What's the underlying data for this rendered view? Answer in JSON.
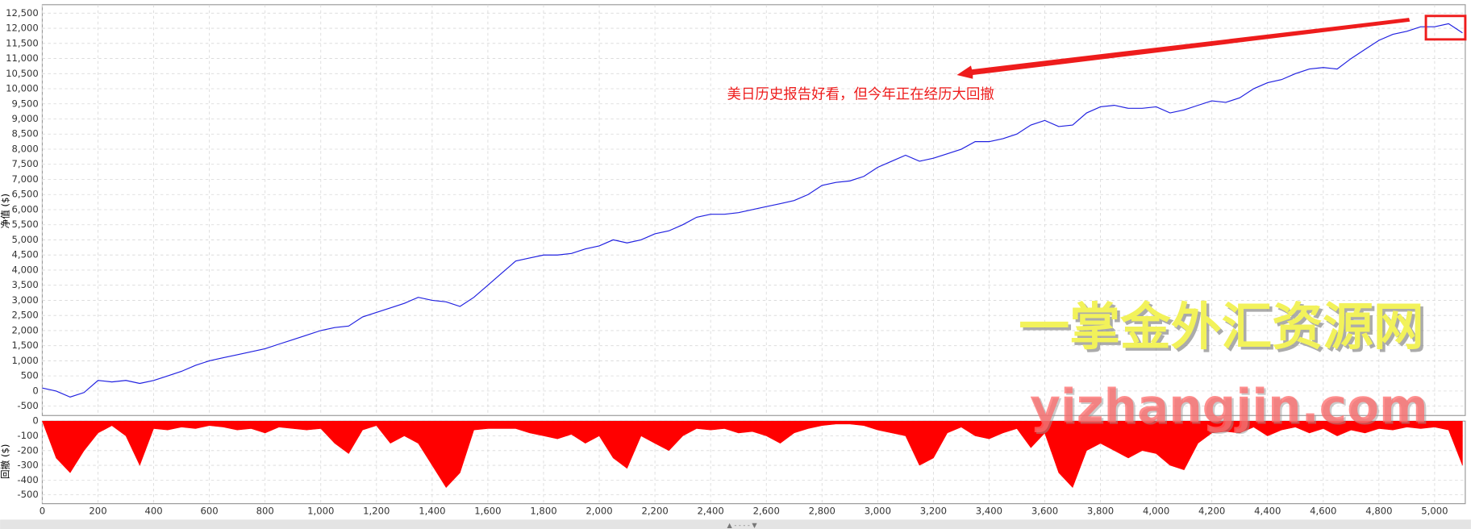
{
  "chart_data": [
    {
      "type": "line",
      "y_label": "净值 ($)",
      "annotation": "美日历史报告好看，但今年正在经历大回撤",
      "watermark": "一掌金外汇资源网",
      "watermark_url": "yizhangjin.com",
      "color": "#2020e0",
      "grid": true,
      "xlim": [
        0,
        5110
      ],
      "ylim": [
        -810,
        12780
      ],
      "xticks": [
        0,
        200,
        400,
        600,
        800,
        {
          "value": 1000,
          "label": "1,000"
        },
        {
          "value": 1200,
          "label": "1,200"
        },
        {
          "value": 1400,
          "label": "1,400"
        },
        {
          "value": 1600,
          "label": "1,600"
        },
        {
          "value": 1800,
          "label": "1,800"
        },
        {
          "value": 2000,
          "label": "2,000"
        },
        {
          "value": 2200,
          "label": "2,200"
        },
        {
          "value": 2400,
          "label": "2,400"
        },
        {
          "value": 2600,
          "label": "2,600"
        },
        {
          "value": 2800,
          "label": "2,800"
        },
        {
          "value": 3000,
          "label": "3,000"
        },
        {
          "value": 3200,
          "label": "3,200"
        },
        {
          "value": 3400,
          "label": "3,400"
        },
        {
          "value": 3600,
          "label": "3,600"
        },
        {
          "value": 3800,
          "label": "3,800"
        },
        {
          "value": 4000,
          "label": "4,000"
        },
        {
          "value": 4200,
          "label": "4,200"
        },
        {
          "value": 4400,
          "label": "4,400"
        },
        {
          "value": 4600,
          "label": "4,600"
        },
        {
          "value": 4800,
          "label": "4,800"
        },
        {
          "value": 5000,
          "label": "5,000"
        }
      ],
      "yticks": [
        -500,
        0,
        500,
        {
          "value": 1000,
          "label": "1,000"
        },
        {
          "value": 1500,
          "label": "1,500"
        },
        {
          "value": 2000,
          "label": "2,000"
        },
        {
          "value": 2500,
          "label": "2,500"
        },
        {
          "value": 3000,
          "label": "3,000"
        },
        {
          "value": 3500,
          "label": "3,500"
        },
        {
          "value": 4000,
          "label": "4,000"
        },
        {
          "value": 4500,
          "label": "4,500"
        },
        {
          "value": 5000,
          "label": "5,000"
        },
        {
          "value": 5500,
          "label": "5,500"
        },
        {
          "value": 6000,
          "label": "6,000"
        },
        {
          "value": 6500,
          "label": "6,500"
        },
        {
          "value": 7000,
          "label": "7,000"
        },
        {
          "value": 7500,
          "label": "7,500"
        },
        {
          "value": 8000,
          "label": "8,000"
        },
        {
          "value": 8500,
          "label": "8,500"
        },
        {
          "value": 9000,
          "label": "9,000"
        },
        {
          "value": 9500,
          "label": "9,500"
        },
        {
          "value": 10000,
          "label": "10,000"
        },
        {
          "value": 10500,
          "label": "10,500"
        },
        {
          "value": 11000,
          "label": "11,000"
        },
        {
          "value": 11500,
          "label": "11,500"
        },
        {
          "value": 12000,
          "label": "12,000"
        },
        {
          "value": 12500,
          "label": "12,500"
        }
      ],
      "x": [
        0,
        50,
        100,
        150,
        200,
        250,
        300,
        350,
        400,
        450,
        500,
        550,
        600,
        650,
        700,
        750,
        800,
        850,
        900,
        950,
        1000,
        1050,
        1100,
        1150,
        1200,
        1250,
        1300,
        1350,
        1400,
        1450,
        1500,
        1550,
        1600,
        1650,
        1700,
        1750,
        1800,
        1850,
        1900,
        1950,
        2000,
        2050,
        2100,
        2150,
        2200,
        2250,
        2300,
        2350,
        2400,
        2450,
        2500,
        2550,
        2600,
        2650,
        2700,
        2750,
        2800,
        2850,
        2900,
        2950,
        3000,
        3050,
        3100,
        3150,
        3200,
        3250,
        3300,
        3350,
        3400,
        3450,
        3500,
        3550,
        3600,
        3650,
        3700,
        3750,
        3800,
        3850,
        3900,
        3950,
        4000,
        4050,
        4100,
        4150,
        4200,
        4250,
        4300,
        4350,
        4400,
        4450,
        4500,
        4550,
        4600,
        4650,
        4700,
        4750,
        4800,
        4850,
        4900,
        4950,
        5000,
        5050,
        5100
      ],
      "values": [
        100,
        0,
        -200,
        -50,
        350,
        300,
        350,
        250,
        350,
        500,
        650,
        850,
        1000,
        1100,
        1200,
        1300,
        1400,
        1550,
        1700,
        1850,
        2000,
        2100,
        2150,
        2450,
        2600,
        2750,
        2900,
        3100,
        3000,
        2950,
        2800,
        3100,
        3500,
        3900,
        4300,
        4400,
        4500,
        4500,
        4550,
        4700,
        4800,
        5000,
        4900,
        5000,
        5200,
        5300,
        5500,
        5750,
        5850,
        5850,
        5900,
        6000,
        6100,
        6200,
        6300,
        6500,
        6800,
        6900,
        6950,
        7100,
        7400,
        7600,
        7800,
        7600,
        7700,
        7850,
        8000,
        8250,
        8250,
        8350,
        8500,
        8800,
        8950,
        8750,
        8800,
        9200,
        9400,
        9450,
        9350,
        9350,
        9400,
        9200,
        9300,
        9450,
        9600,
        9550,
        9700,
        10000,
        10200,
        10300,
        10500,
        10650,
        10700,
        10650,
        11000,
        11300,
        11600,
        11800,
        11900,
        12050,
        12050,
        12150,
        11850
      ]
    },
    {
      "type": "area",
      "y_label": "回撤 ($)",
      "color": "#ff0000",
      "grid": true,
      "xlim": [
        0,
        5110
      ],
      "ylim": [
        -560,
        0
      ],
      "xticks": [
        0,
        200,
        400,
        600,
        800,
        {
          "value": 1000,
          "label": "1,000"
        },
        {
          "value": 1200,
          "label": "1,200"
        },
        {
          "value": 1400,
          "label": "1,400"
        },
        {
          "value": 1600,
          "label": "1,600"
        },
        {
          "value": 1800,
          "label": "1,800"
        },
        {
          "value": 2000,
          "label": "2,000"
        },
        {
          "value": 2200,
          "label": "2,200"
        },
        {
          "value": 2400,
          "label": "2,400"
        },
        {
          "value": 2600,
          "label": "2,600"
        },
        {
          "value": 2800,
          "label": "2,800"
        },
        {
          "value": 3000,
          "label": "3,000"
        },
        {
          "value": 3200,
          "label": "3,200"
        },
        {
          "value": 3400,
          "label": "3,400"
        },
        {
          "value": 3600,
          "label": "3,600"
        },
        {
          "value": 3800,
          "label": "3,800"
        },
        {
          "value": 4000,
          "label": "4,000"
        },
        {
          "value": 4200,
          "label": "4,200"
        },
        {
          "value": 4400,
          "label": "4,400"
        },
        {
          "value": 4600,
          "label": "4,600"
        },
        {
          "value": 4800,
          "label": "4,800"
        },
        {
          "value": 5000,
          "label": "5,000"
        }
      ],
      "yticks": [
        0,
        -100,
        -200,
        -300,
        -400,
        -500
      ],
      "x": [
        0,
        50,
        100,
        150,
        200,
        250,
        300,
        350,
        400,
        450,
        500,
        550,
        600,
        650,
        700,
        750,
        800,
        850,
        900,
        950,
        1000,
        1050,
        1100,
        1150,
        1200,
        1250,
        1300,
        1350,
        1400,
        1450,
        1500,
        1550,
        1600,
        1650,
        1700,
        1750,
        1800,
        1850,
        1900,
        1950,
        2000,
        2050,
        2100,
        2150,
        2200,
        2250,
        2300,
        2350,
        2400,
        2450,
        2500,
        2550,
        2600,
        2650,
        2700,
        2750,
        2800,
        2850,
        2900,
        2950,
        3000,
        3050,
        3100,
        3150,
        3200,
        3250,
        3300,
        3350,
        3400,
        3450,
        3500,
        3550,
        3600,
        3650,
        3700,
        3750,
        3800,
        3850,
        3900,
        3950,
        4000,
        4050,
        4100,
        4150,
        4200,
        4250,
        4300,
        4350,
        4400,
        4450,
        4500,
        4550,
        4600,
        4650,
        4700,
        4750,
        4800,
        4850,
        4900,
        4950,
        5000,
        5050,
        5100
      ],
      "values": [
        0,
        -250,
        -350,
        -200,
        -80,
        -30,
        -100,
        -300,
        -50,
        -60,
        -40,
        -50,
        -30,
        -40,
        -60,
        -50,
        -80,
        -40,
        -50,
        -60,
        -50,
        -150,
        -220,
        -60,
        -30,
        -150,
        -100,
        -150,
        -300,
        -450,
        -350,
        -60,
        -50,
        -50,
        -50,
        -80,
        -100,
        -120,
        -90,
        -150,
        -100,
        -250,
        -320,
        -100,
        -150,
        -200,
        -100,
        -50,
        -60,
        -50,
        -80,
        -70,
        -100,
        -150,
        -80,
        -50,
        -30,
        -20,
        -20,
        -30,
        -60,
        -80,
        -100,
        -300,
        -250,
        -80,
        -40,
        -100,
        -120,
        -80,
        -50,
        -180,
        -80,
        -350,
        -450,
        -200,
        -150,
        -200,
        -250,
        -200,
        -220,
        -300,
        -330,
        -150,
        -80,
        -70,
        -80,
        -40,
        -100,
        -60,
        -40,
        -80,
        -50,
        -100,
        -60,
        -80,
        -50,
        -60,
        -40,
        -50,
        -40,
        -60,
        -300
      ]
    }
  ]
}
